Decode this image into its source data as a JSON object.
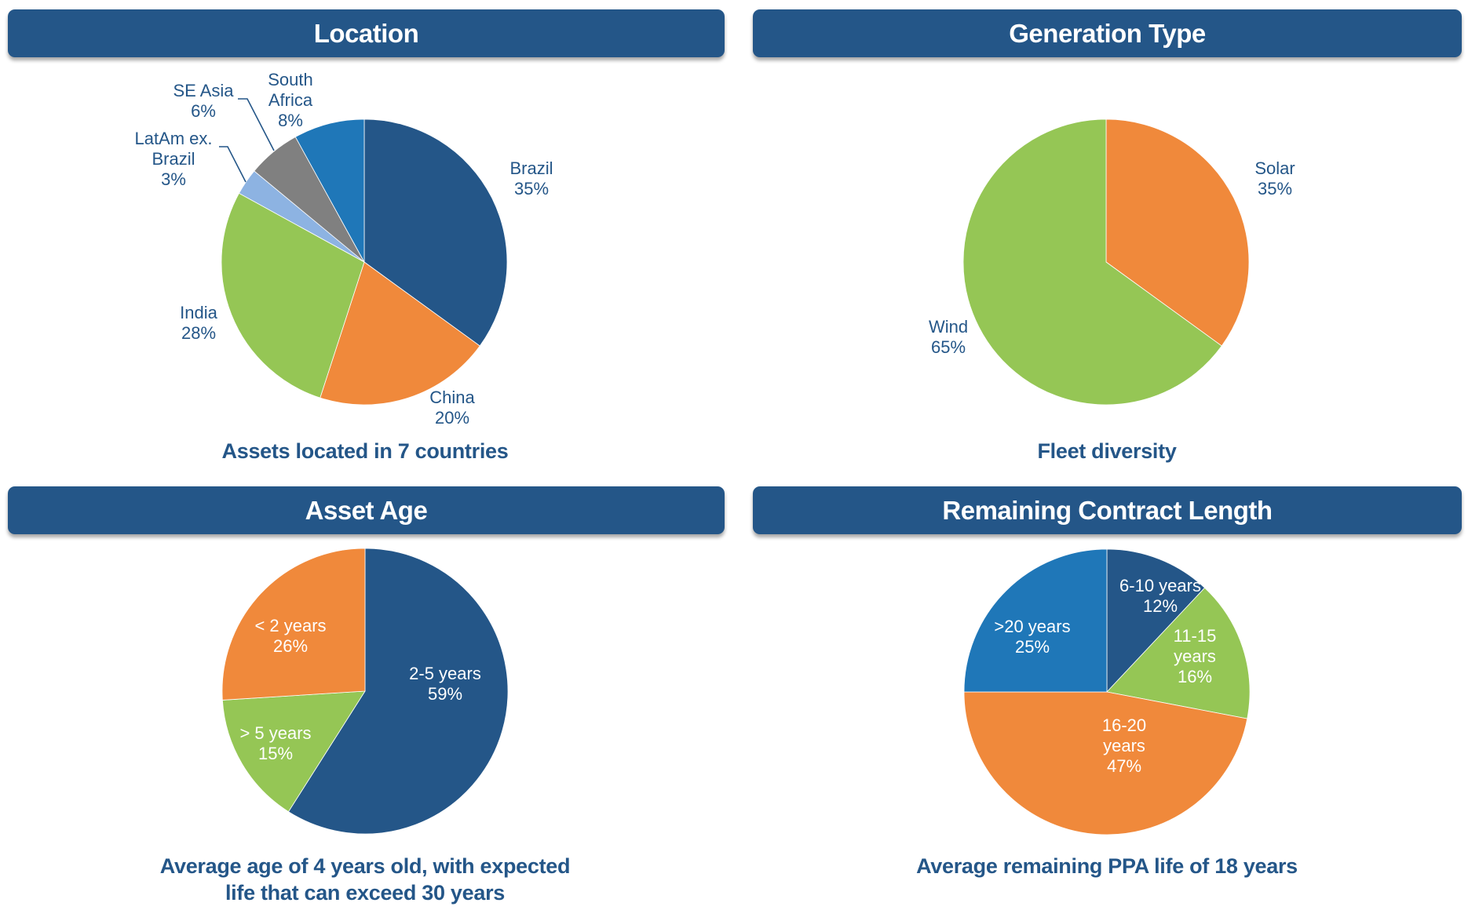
{
  "colors": {
    "header_bg": "#245688",
    "text": "#245688",
    "dark_blue": "#245688",
    "mid_blue": "#1f77b8",
    "grey": "#808080",
    "light_blue": "#8db3e2",
    "green": "#95c655",
    "orange": "#f0893b"
  },
  "panels": {
    "location": {
      "header": "Location",
      "subtitle": "Assets located in 7 countries"
    },
    "generation": {
      "header": "Generation Type",
      "subtitle": "Fleet diversity"
    },
    "age": {
      "header": "Asset Age",
      "subtitle_line1": "Average age of 4 years old, with expected",
      "subtitle_line2": "life that can exceed 30 years"
    },
    "contract": {
      "header": "Remaining Contract Length",
      "subtitle": "Average remaining PPA life of 18 years"
    }
  },
  "chart_data": [
    {
      "type": "pie",
      "title": "Location",
      "caption": "Assets located in 7 countries",
      "start": "12 o'clock, clockwise",
      "slices": [
        {
          "label": "Brazil",
          "value": 35,
          "display": "35%",
          "color": "#245688"
        },
        {
          "label": "China",
          "value": 20,
          "display": "20%",
          "color": "#f0893b"
        },
        {
          "label": "India",
          "value": 28,
          "display": "28%",
          "color": "#95c655"
        },
        {
          "label": "LatAm ex. Brazil",
          "value": 3,
          "display": "3%",
          "color": "#8db3e2"
        },
        {
          "label": "SE Asia",
          "value": 6,
          "display": "6%",
          "color": "#808080"
        },
        {
          "label": "South Africa",
          "value": 8,
          "display": "8%",
          "color": "#1f77b8"
        }
      ],
      "label_position": "outside"
    },
    {
      "type": "pie",
      "title": "Generation Type",
      "caption": "Fleet diversity",
      "start": "12 o'clock, clockwise",
      "slices": [
        {
          "label": "Solar",
          "value": 35,
          "display": "35%",
          "color": "#f0893b"
        },
        {
          "label": "Wind",
          "value": 65,
          "display": "65%",
          "color": "#95c655"
        }
      ],
      "label_position": "outside"
    },
    {
      "type": "pie",
      "title": "Asset Age",
      "caption": "Average age of 4 years old, with expected life that can exceed 30 years",
      "start": "12 o'clock, clockwise",
      "slices": [
        {
          "label": "2-5 years",
          "value": 59,
          "display": "59%",
          "color": "#245688"
        },
        {
          "label": "> 5 years",
          "value": 15,
          "display": "15%",
          "color": "#95c655"
        },
        {
          "label": "< 2 years",
          "value": 26,
          "display": "26%",
          "color": "#f0893b"
        }
      ],
      "label_position": "inside"
    },
    {
      "type": "pie",
      "title": "Remaining Contract Length",
      "caption": "Average remaining PPA life of 18 years",
      "start": "12 o'clock, clockwise",
      "slices": [
        {
          "label": "6-10 years",
          "value": 12,
          "display": "12%",
          "color": "#245688"
        },
        {
          "label": "11-15 years",
          "value": 16,
          "display": "16%",
          "color": "#95c655"
        },
        {
          "label": "16-20 years",
          "value": 47,
          "display": "47%",
          "color": "#f0893b"
        },
        {
          "label": ">20 years",
          "value": 25,
          "display": "25%",
          "color": "#1f77b8"
        }
      ],
      "label_position": "inside"
    }
  ]
}
